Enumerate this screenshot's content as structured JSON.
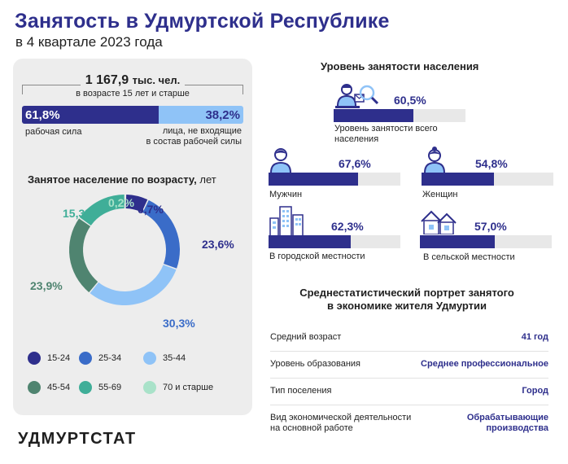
{
  "header": {
    "title": "Занятость в Удмуртской Республике",
    "subtitle": "в 4 квартале 2023 года"
  },
  "total": {
    "value": "1 167,9",
    "unit": "тыс. чел.",
    "note": "в возрасте 15 лет и старше"
  },
  "labor_split": {
    "workforce_value": "61,8%",
    "workforce_label": "рабочая сила",
    "workforce_share": 61.8,
    "outside_value": "38,2%",
    "outside_label_line1": "лица, не входящие",
    "outside_label_line2": "в состав рабочей силы",
    "outside_share": 38.2
  },
  "age_chart": {
    "title": "Занятое население по возрасту,",
    "unit": "лет"
  },
  "employment_rates": {
    "title": "Уровень занятости населения",
    "items": [
      {
        "id": "total",
        "value_label": "60,5%",
        "value": 60.5,
        "label_line1": "Уровень занятости всего",
        "label_line2": "населения"
      },
      {
        "id": "men",
        "value_label": "67,6%",
        "value": 67.6,
        "label_line1": "Мужчин",
        "label_line2": ""
      },
      {
        "id": "women",
        "value_label": "54,8%",
        "value": 54.8,
        "label_line1": "Женщин",
        "label_line2": ""
      },
      {
        "id": "urban",
        "value_label": "62,3%",
        "value": 62.3,
        "label_line1": "В городской местности",
        "label_line2": ""
      },
      {
        "id": "rural",
        "value_label": "57,0%",
        "value": 57.0,
        "label_line1": "В сельской местности",
        "label_line2": ""
      }
    ]
  },
  "portrait": {
    "title_line1": "Среднестатистический портрет занятого",
    "title_line2": "в экономике жителя Удмуртии",
    "rows": [
      {
        "key_line1": "Средний возраст",
        "key_line2": "",
        "value_line1": "41 год",
        "value_line2": ""
      },
      {
        "key_line1": "Уровень образования",
        "key_line2": "",
        "value_line1": "Среднее профессиональное",
        "value_line2": ""
      },
      {
        "key_line1": "Тип поселения",
        "key_line2": "",
        "value_line1": "Город",
        "value_line2": ""
      },
      {
        "key_line1": "Вид экономической деятельности",
        "key_line2": "на основной работе",
        "value_line1": "Обрабатывающие",
        "value_line2": "производства"
      }
    ]
  },
  "logo": "УДМУРТСТАТ",
  "icons": {
    "total": "person-at-laptop-with-magnifier-icon",
    "men": "man-icon",
    "women": "woman-icon",
    "urban": "city-buildings-icon",
    "rural": "village-houses-icon"
  },
  "colors": {
    "accent": "#2e2f8c",
    "light_blue": "#8fc3f7",
    "panel": "#ededed",
    "bar_bg": "#e8e8e8"
  },
  "chart_data": {
    "type": "pie",
    "donut": true,
    "categories": [
      "15-24",
      "25-34",
      "35-44",
      "45-54",
      "55-69",
      "70 и старше"
    ],
    "values": [
      6.7,
      23.6,
      30.3,
      23.9,
      15.3,
      0.2
    ],
    "value_labels": [
      "6,7%",
      "23,6%",
      "30,3%",
      "23,9%",
      "15,3%",
      "0,2%"
    ],
    "colors": [
      "#2e2f8c",
      "#3a6cc8",
      "#8fc3f7",
      "#4f8470",
      "#3fae98",
      "#a9e2c9"
    ],
    "title": "Занятое население по возрасту,",
    "unit": "лет",
    "legend_position": "bottom"
  }
}
